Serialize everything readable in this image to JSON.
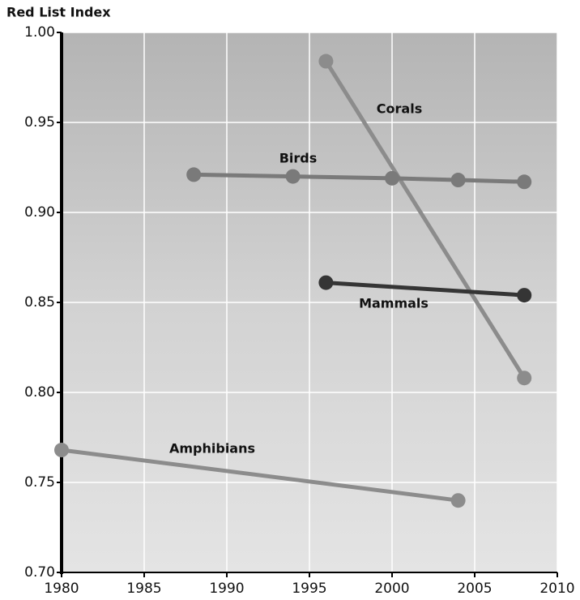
{
  "chart_data": {
    "type": "line",
    "title": "Red List Index",
    "xlim": [
      1980,
      2010
    ],
    "xticks": [
      1980,
      1985,
      1990,
      1995,
      2000,
      2005,
      2010
    ],
    "ylim": [
      0.7,
      1.0
    ],
    "yticks": [
      {
        "value": 0.7,
        "label": "0.70"
      },
      0.75,
      {
        "value": 0.8,
        "label": "0.80"
      },
      0.85,
      {
        "value": 0.9,
        "label": "0.90"
      },
      0.95,
      {
        "value": 1.0,
        "label": "1.00"
      }
    ],
    "grid": true,
    "series": [
      {
        "name": "Corals",
        "color": "#8c8c8c",
        "x": [
          1996,
          2008
        ],
        "values": [
          0.984,
          0.808
        ]
      },
      {
        "name": "Birds",
        "color": "#7a7a7a",
        "x": [
          1988,
          1994,
          2000,
          2004,
          2008
        ],
        "values": [
          0.921,
          0.92,
          0.919,
          0.918,
          0.917
        ]
      },
      {
        "name": "Mammals",
        "color": "#353535",
        "x": [
          1996,
          2008
        ],
        "values": [
          0.861,
          0.854
        ]
      },
      {
        "name": "Amphibians",
        "color": "#8c8c8c",
        "x": [
          1980,
          2004
        ],
        "values": [
          0.768,
          0.74
        ]
      }
    ]
  }
}
